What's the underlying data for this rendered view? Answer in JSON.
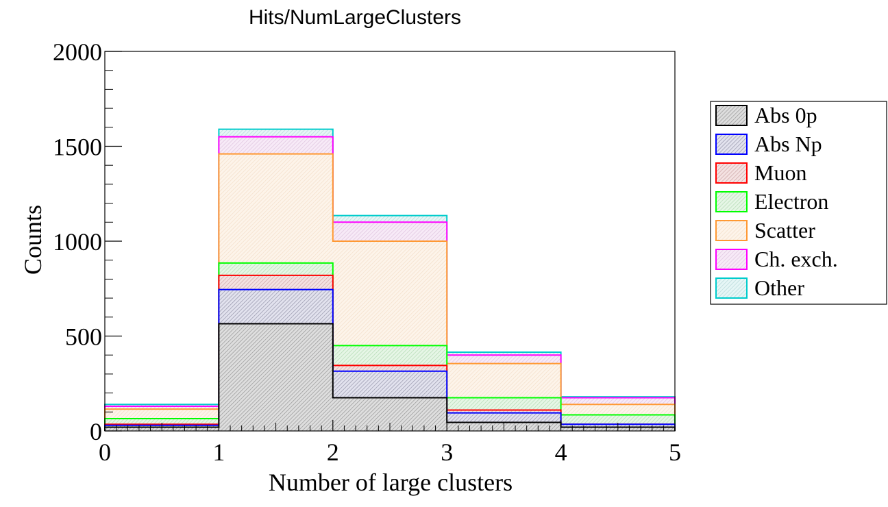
{
  "chart_data": {
    "type": "bar",
    "stacked": true,
    "title": "Hits/NumLargeClusters",
    "xlabel": "Number of large clusters",
    "ylabel": "Counts",
    "bin_edges": [
      0,
      1,
      2,
      3,
      4,
      5
    ],
    "xlim": [
      0,
      5
    ],
    "ylim": [
      0,
      2000
    ],
    "x_ticks": [
      "0",
      "1",
      "2",
      "3",
      "4",
      "5"
    ],
    "y_ticks": [
      "0",
      "500",
      "1000",
      "1500",
      "2000"
    ],
    "grid": false,
    "legend_position": "right",
    "series": [
      {
        "name": "Abs 0p",
        "color": "#000000",
        "values": [
          20,
          565,
          175,
          45,
          20
        ]
      },
      {
        "name": "Abs Np",
        "color": "#0000ff",
        "values": [
          10,
          180,
          140,
          50,
          15
        ]
      },
      {
        "name": "Muon",
        "color": "#ff0000",
        "values": [
          5,
          75,
          30,
          15,
          0
        ]
      },
      {
        "name": "Electron",
        "color": "#00ff00",
        "values": [
          30,
          65,
          105,
          65,
          50
        ]
      },
      {
        "name": "Scatter",
        "color": "#ff9933",
        "values": [
          50,
          575,
          550,
          180,
          55
        ]
      },
      {
        "name": "Ch. exch.",
        "color": "#ff00ff",
        "values": [
          15,
          90,
          100,
          45,
          35
        ]
      },
      {
        "name": "Other",
        "color": "#00cccc",
        "values": [
          10,
          40,
          35,
          15,
          5
        ]
      }
    ]
  }
}
